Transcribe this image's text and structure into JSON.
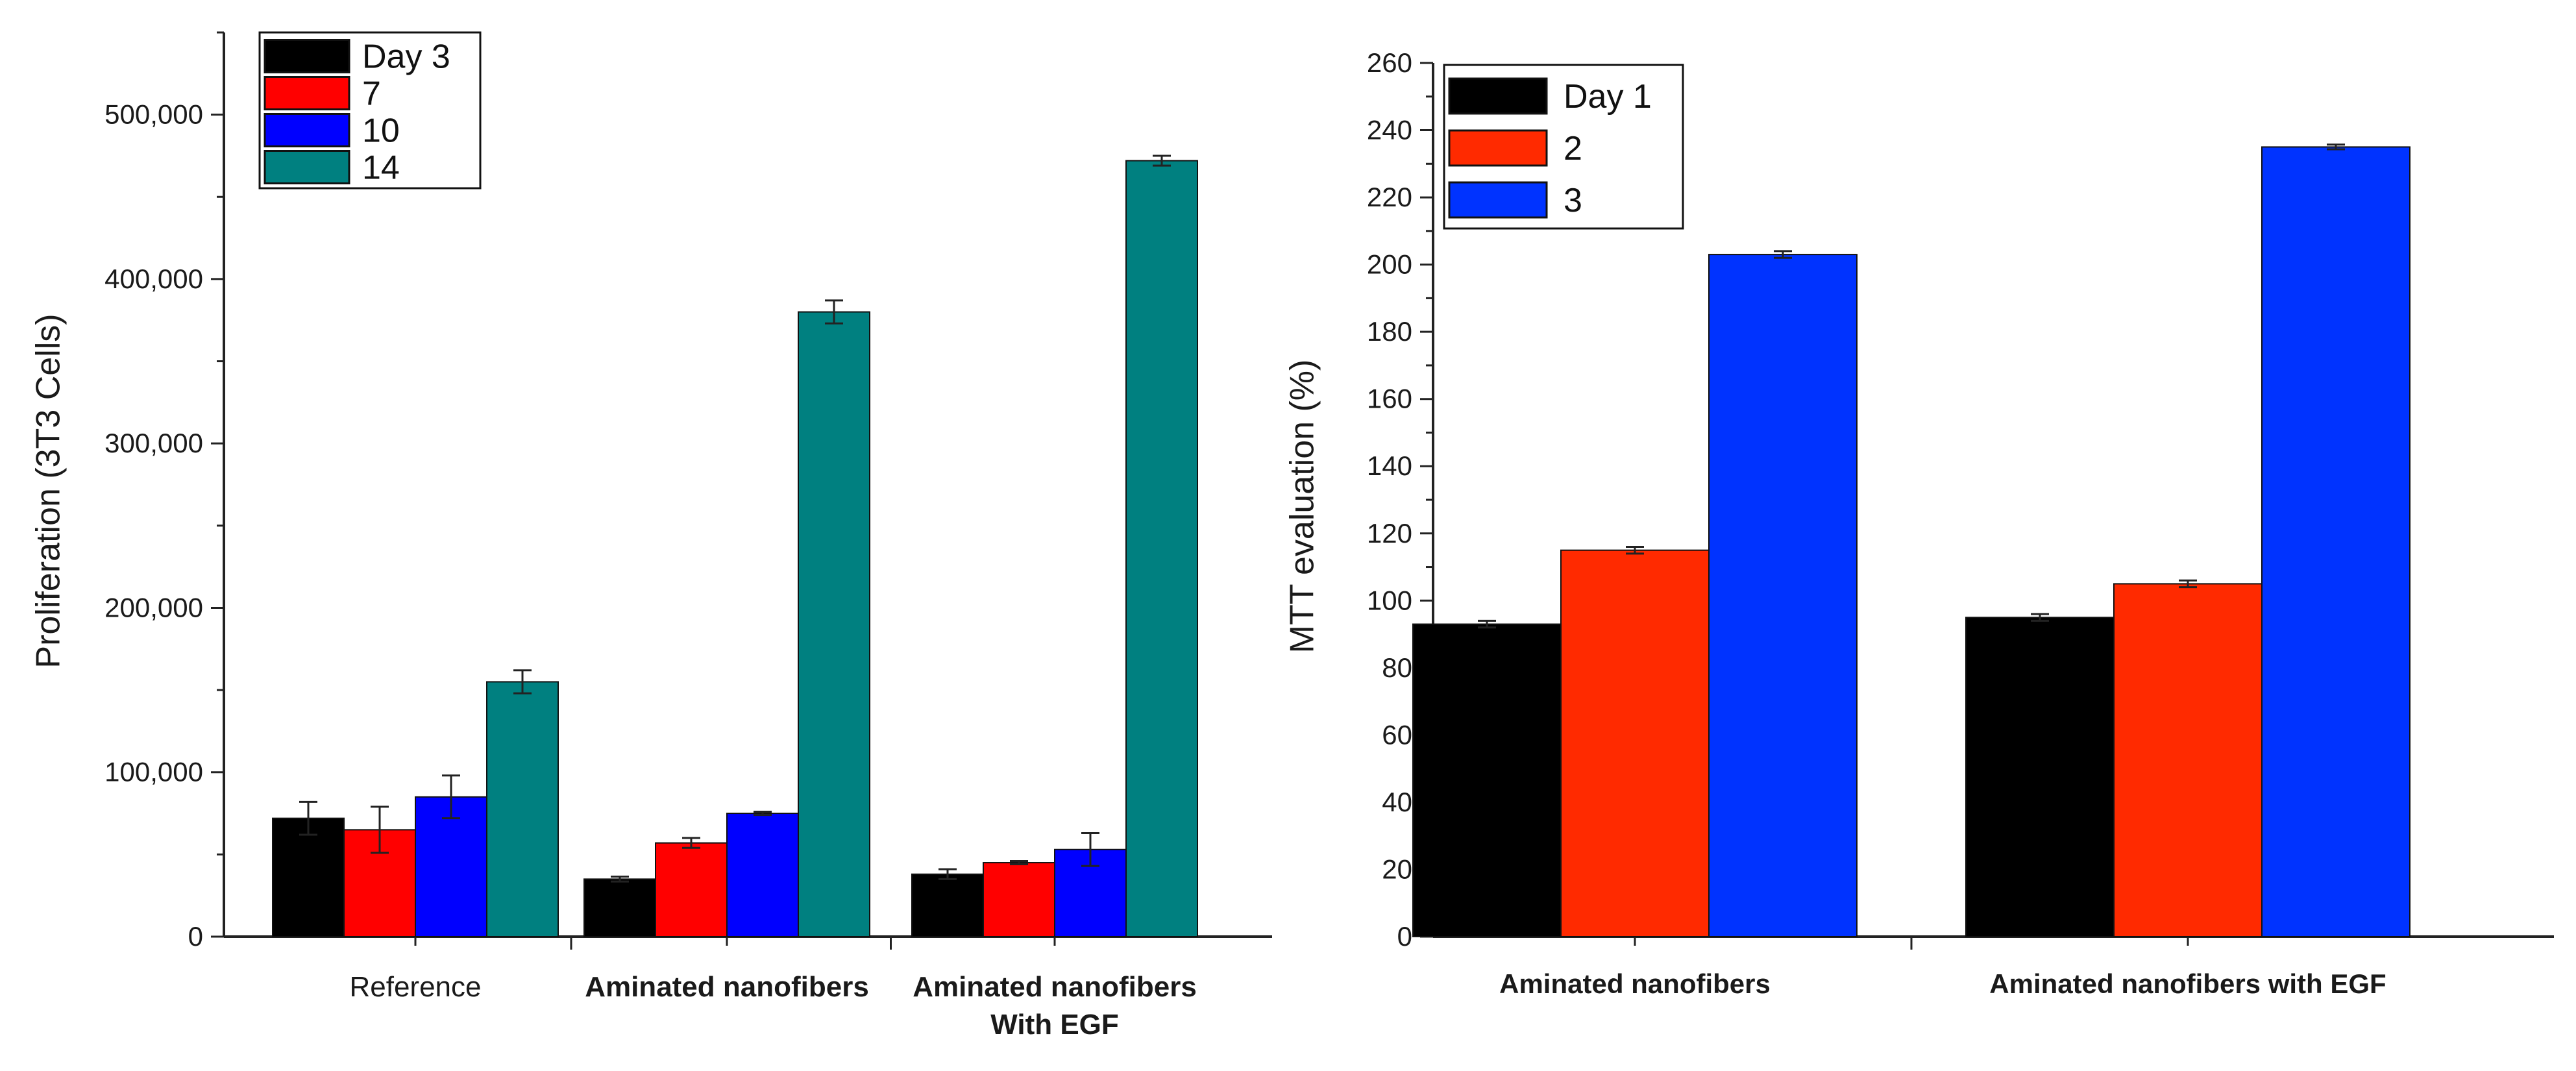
{
  "chart_data": [
    {
      "type": "bar",
      "ylabel": "Proliferation (3T3 Cells)",
      "xlabel": "",
      "ylim": [
        0,
        550000
      ],
      "yticks": [
        0,
        100000,
        200000,
        300000,
        400000,
        500000
      ],
      "ytick_labels": [
        "0",
        "100,000",
        "200,000",
        "300,000",
        "400,000",
        "500,000"
      ],
      "categories": [
        "Reference",
        "Aminated nanofibers",
        "Aminated nanofibers With EGF"
      ],
      "category_lines": [
        [
          "Reference"
        ],
        [
          "Aminated nanofibers"
        ],
        [
          "Aminated nanofibers",
          "With EGF"
        ]
      ],
      "category_bold": [
        false,
        true,
        true
      ],
      "legend_position": "top-left",
      "series": [
        {
          "name": "Day 3",
          "color": "#000000",
          "values": [
            72000,
            35000,
            38000
          ],
          "errors": [
            10000,
            1500,
            3000
          ]
        },
        {
          "name": "7",
          "color": "#ff0000",
          "values": [
            65000,
            57000,
            45000
          ],
          "errors": [
            14000,
            3000,
            1000
          ]
        },
        {
          "name": "10",
          "color": "#0000ff",
          "values": [
            85000,
            75000,
            53000
          ],
          "errors": [
            13000,
            1000,
            10000
          ]
        },
        {
          "name": "14",
          "color": "#008080",
          "values": [
            155000,
            380000,
            472000
          ],
          "errors": [
            7000,
            7000,
            3000
          ]
        }
      ]
    },
    {
      "type": "bar",
      "ylabel": "MTT evaluation (%)",
      "xlabel": "",
      "ylim": [
        0,
        260
      ],
      "yticks": [
        0,
        20,
        40,
        60,
        80,
        100,
        120,
        140,
        160,
        180,
        200,
        220,
        240,
        260
      ],
      "ytick_labels": [
        "0",
        "20",
        "40",
        "60",
        "80",
        "100",
        "120",
        "140",
        "160",
        "180",
        "200",
        "220",
        "240",
        "260"
      ],
      "categories": [
        "Aminated  nanofibers",
        "Aminated nanofibers with EGF"
      ],
      "category_lines": [
        [
          "Aminated  nanofibers"
        ],
        [
          "Aminated nanofibers with EGF"
        ]
      ],
      "category_bold": [
        true,
        true
      ],
      "legend_position": "top-left",
      "series": [
        {
          "name": "Day 1",
          "color": "#000000",
          "values": [
            93,
            95
          ],
          "errors": [
            1,
            1
          ]
        },
        {
          "name": "2",
          "color": "#ff2a00",
          "values": [
            115,
            105
          ],
          "errors": [
            1,
            1
          ]
        },
        {
          "name": "3",
          "color": "#0033ff",
          "values": [
            203,
            235
          ],
          "errors": [
            1,
            0.7
          ]
        }
      ]
    }
  ]
}
